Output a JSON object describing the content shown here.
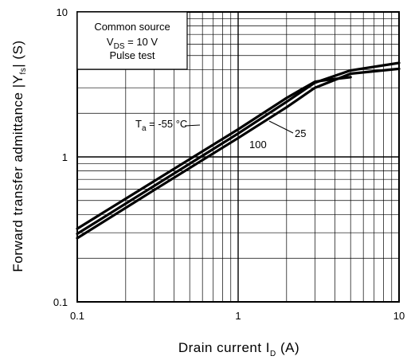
{
  "chart_data": {
    "type": "line",
    "xscale": "log",
    "yscale": "log",
    "xlim": [
      0.1,
      10
    ],
    "ylim": [
      0.1,
      10
    ],
    "grid": true,
    "x_ticks": [
      "0.1",
      "1",
      "10"
    ],
    "y_ticks": [
      "0.1",
      "1",
      "10"
    ],
    "xlabel": {
      "main": "Drain current  I",
      "sub": "D",
      "unit": "(A)"
    },
    "ylabel": {
      "main": "Forward transfer admittance  |Y",
      "sub": "fs",
      "unit": "|  (S)"
    },
    "conditions": {
      "line1": "Common source",
      "line2_main": "V",
      "line2_sub": "DS",
      "line2_rest": " = 10 V",
      "line3": "Pulse test"
    },
    "series": [
      {
        "name": "Ta = -55 °C",
        "points": [
          [
            0.1,
            0.32
          ],
          [
            0.3,
            0.68
          ],
          [
            1,
            1.55
          ],
          [
            2,
            2.55
          ],
          [
            3,
            3.3
          ],
          [
            4,
            3.45
          ],
          [
            5,
            3.55
          ]
        ]
      },
      {
        "name": "25",
        "points": [
          [
            0.1,
            0.295
          ],
          [
            0.3,
            0.63
          ],
          [
            1,
            1.45
          ],
          [
            2,
            2.4
          ],
          [
            3,
            3.25
          ],
          [
            5,
            3.95
          ],
          [
            10,
            4.45
          ]
        ]
      },
      {
        "name": "100",
        "points": [
          [
            0.1,
            0.275
          ],
          [
            0.3,
            0.59
          ],
          [
            1,
            1.35
          ],
          [
            2,
            2.2
          ],
          [
            3,
            3.0
          ],
          [
            5,
            3.75
          ],
          [
            10,
            4.05
          ]
        ]
      }
    ],
    "labels": {
      "ta_main": "T",
      "ta_sub": "a",
      "ta_rest": " = -55 °C",
      "label_25": "25",
      "label_100": "100"
    }
  }
}
